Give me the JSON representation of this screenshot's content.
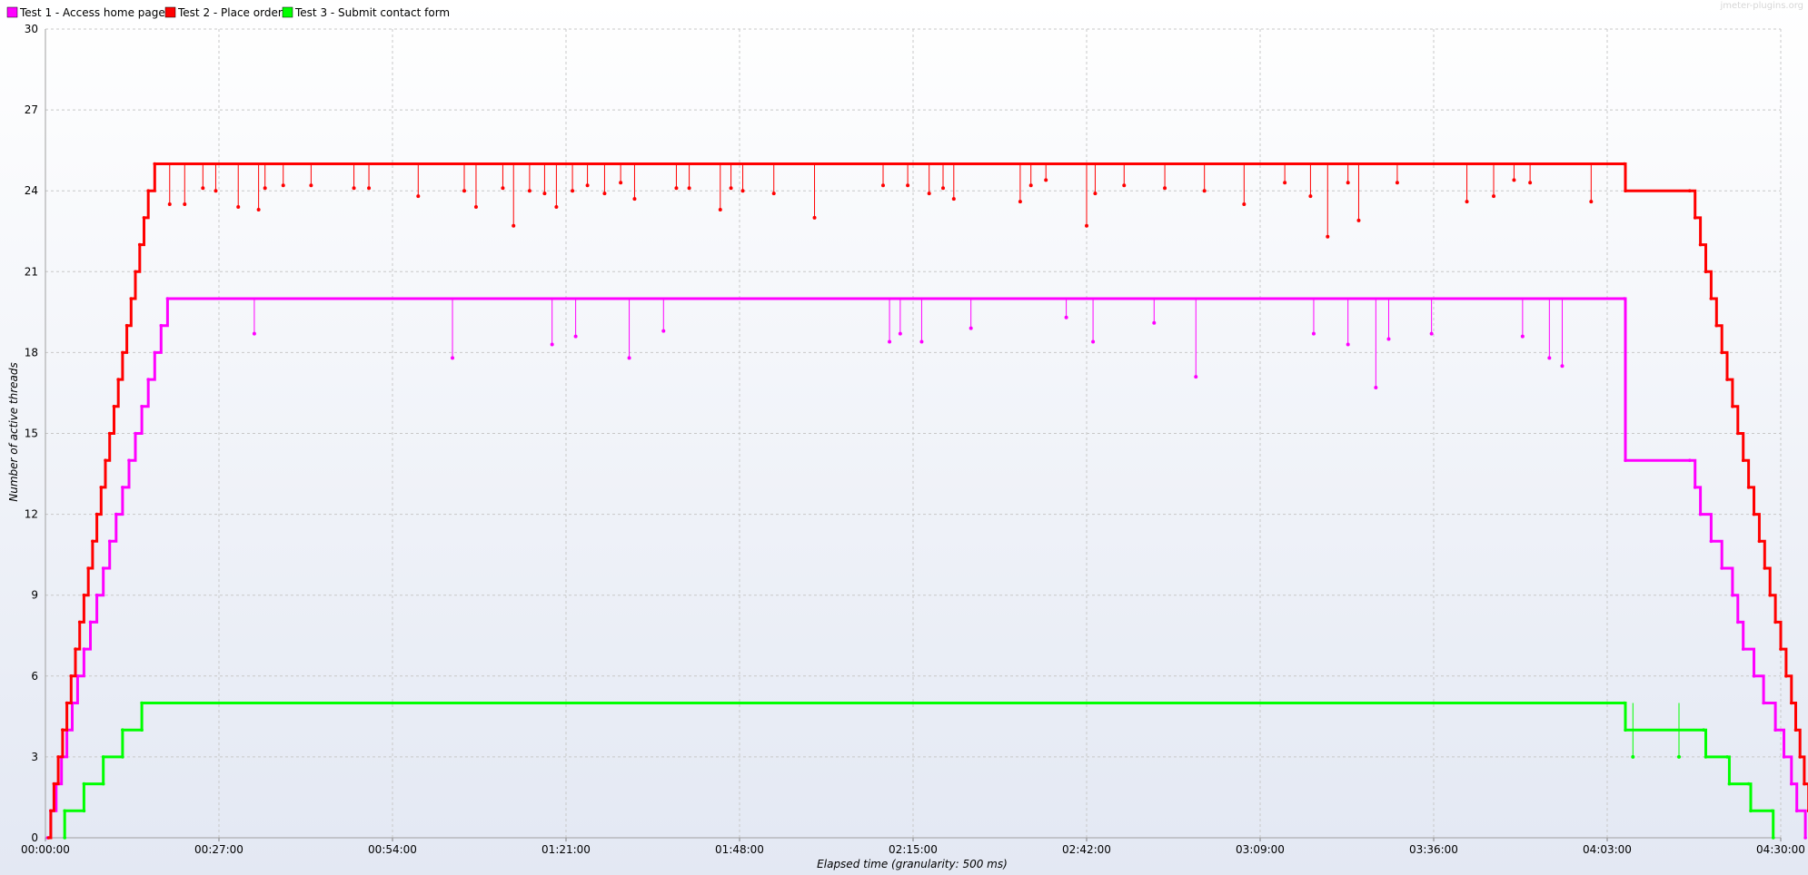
{
  "watermark": "jmeter-plugins.org",
  "colors": {
    "background_top": "#ffffff",
    "background_bottom": "#e3e8f3",
    "grid": "#c8c8c8",
    "axis": "#808080"
  },
  "chart_data": {
    "type": "line",
    "title": "",
    "xlabel": "Elapsed time (granularity: 500 ms)",
    "ylabel": "Number of active threads",
    "x_unit": "seconds",
    "xlim": [
      0,
      16200
    ],
    "ylim": [
      0,
      30
    ],
    "y_ticks": [
      0,
      3,
      6,
      9,
      12,
      15,
      18,
      21,
      24,
      27,
      30
    ],
    "x_ticks": [
      {
        "value": 0,
        "label": "00:00:00"
      },
      {
        "value": 1620,
        "label": "00:27:00"
      },
      {
        "value": 3240,
        "label": "00:54:00"
      },
      {
        "value": 4860,
        "label": "01:21:00"
      },
      {
        "value": 6480,
        "label": "01:48:00"
      },
      {
        "value": 8100,
        "label": "02:15:00"
      },
      {
        "value": 9720,
        "label": "02:42:00"
      },
      {
        "value": 11340,
        "label": "03:09:00"
      },
      {
        "value": 12960,
        "label": "03:36:00"
      },
      {
        "value": 14580,
        "label": "04:03:00"
      },
      {
        "value": 16200,
        "label": "04:30:00"
      }
    ],
    "grid": true,
    "legend_position": "top-left",
    "series": [
      {
        "name": "Test 1 - Access home page",
        "color": "#ff00ff",
        "steps": [
          [
            20,
            0
          ],
          [
            50,
            1
          ],
          [
            100,
            2
          ],
          [
            150,
            3
          ],
          [
            200,
            4
          ],
          [
            250,
            5
          ],
          [
            300,
            6
          ],
          [
            360,
            7
          ],
          [
            420,
            8
          ],
          [
            480,
            9
          ],
          [
            540,
            10
          ],
          [
            600,
            11
          ],
          [
            660,
            12
          ],
          [
            720,
            13
          ],
          [
            780,
            14
          ],
          [
            840,
            15
          ],
          [
            900,
            16
          ],
          [
            960,
            17
          ],
          [
            1020,
            18
          ],
          [
            1080,
            19
          ],
          [
            1140,
            20
          ],
          [
            14740,
            20
          ],
          [
            14750,
            14
          ],
          [
            15350,
            14
          ],
          [
            15400,
            13
          ],
          [
            15450,
            12
          ],
          [
            15550,
            11
          ],
          [
            15650,
            10
          ],
          [
            15750,
            9
          ],
          [
            15800,
            8
          ],
          [
            15850,
            7
          ],
          [
            15950,
            6
          ],
          [
            16040,
            5
          ],
          [
            16150,
            4
          ],
          [
            16230,
            3
          ],
          [
            16300,
            2
          ],
          [
            16350,
            1
          ],
          [
            16430,
            0
          ]
        ],
        "dips": [
          [
            1950,
            18.7
          ],
          [
            3800,
            17.8
          ],
          [
            4730,
            18.3
          ],
          [
            4950,
            18.6
          ],
          [
            5450,
            17.8
          ],
          [
            5770,
            18.8
          ],
          [
            7880,
            18.4
          ],
          [
            7980,
            18.7
          ],
          [
            8180,
            18.4
          ],
          [
            8640,
            18.9
          ],
          [
            9530,
            19.3
          ],
          [
            9780,
            18.4
          ],
          [
            10350,
            19.1
          ],
          [
            10740,
            17.1
          ],
          [
            11840,
            18.7
          ],
          [
            12160,
            18.3
          ],
          [
            12420,
            16.7
          ],
          [
            12540,
            18.5
          ],
          [
            12940,
            18.7
          ],
          [
            13790,
            18.6
          ],
          [
            14040,
            17.8
          ],
          [
            14160,
            17.5
          ]
        ]
      },
      {
        "name": "Test 2 - Place order",
        "color": "#ff0000",
        "steps": [
          [
            30,
            0
          ],
          [
            50,
            1
          ],
          [
            80,
            2
          ],
          [
            120,
            3
          ],
          [
            160,
            4
          ],
          [
            200,
            5
          ],
          [
            240,
            6
          ],
          [
            280,
            7
          ],
          [
            320,
            8
          ],
          [
            360,
            9
          ],
          [
            400,
            10
          ],
          [
            440,
            11
          ],
          [
            480,
            12
          ],
          [
            520,
            13
          ],
          [
            560,
            14
          ],
          [
            600,
            15
          ],
          [
            640,
            16
          ],
          [
            680,
            17
          ],
          [
            720,
            18
          ],
          [
            760,
            19
          ],
          [
            800,
            20
          ],
          [
            840,
            21
          ],
          [
            880,
            22
          ],
          [
            920,
            23
          ],
          [
            960,
            24
          ],
          [
            1020,
            25
          ],
          [
            14740,
            25
          ],
          [
            14750,
            24
          ],
          [
            15350,
            24
          ],
          [
            15400,
            23
          ],
          [
            15450,
            22
          ],
          [
            15500,
            21
          ],
          [
            15550,
            20
          ],
          [
            15600,
            19
          ],
          [
            15650,
            18
          ],
          [
            15700,
            17
          ],
          [
            15750,
            16
          ],
          [
            15800,
            15
          ],
          [
            15850,
            14
          ],
          [
            15900,
            13
          ],
          [
            15950,
            12
          ],
          [
            16000,
            11
          ],
          [
            16050,
            10
          ],
          [
            16100,
            9
          ],
          [
            16150,
            8
          ],
          [
            16200,
            7
          ],
          [
            16250,
            6
          ],
          [
            16300,
            5
          ],
          [
            16340,
            4
          ],
          [
            16380,
            3
          ],
          [
            16420,
            2
          ],
          [
            16460,
            1
          ],
          [
            16510,
            0
          ]
        ],
        "dips": [
          [
            1160,
            23.5
          ],
          [
            1300,
            23.5
          ],
          [
            1470,
            24.1
          ],
          [
            1590,
            24.0
          ],
          [
            1800,
            23.4
          ],
          [
            1990,
            23.3
          ],
          [
            2050,
            24.1
          ],
          [
            2220,
            24.2
          ],
          [
            2480,
            24.2
          ],
          [
            2880,
            24.1
          ],
          [
            3020,
            24.1
          ],
          [
            3480,
            23.8
          ],
          [
            3910,
            24.0
          ],
          [
            4020,
            23.4
          ],
          [
            4270,
            24.1
          ],
          [
            4370,
            22.7
          ],
          [
            4520,
            24.0
          ],
          [
            4660,
            23.9
          ],
          [
            4770,
            23.4
          ],
          [
            4920,
            24.0
          ],
          [
            5060,
            24.2
          ],
          [
            5220,
            23.9
          ],
          [
            5370,
            24.3
          ],
          [
            5500,
            23.7
          ],
          [
            5890,
            24.1
          ],
          [
            6010,
            24.1
          ],
          [
            6300,
            23.3
          ],
          [
            6400,
            24.1
          ],
          [
            6510,
            24.0
          ],
          [
            6800,
            23.9
          ],
          [
            7180,
            23.0
          ],
          [
            7820,
            24.2
          ],
          [
            8050,
            24.2
          ],
          [
            8250,
            23.9
          ],
          [
            8380,
            24.1
          ],
          [
            8480,
            23.7
          ],
          [
            9100,
            23.6
          ],
          [
            9200,
            24.2
          ],
          [
            9340,
            24.4
          ],
          [
            9720,
            22.7
          ],
          [
            9800,
            23.9
          ],
          [
            10070,
            24.2
          ],
          [
            10450,
            24.1
          ],
          [
            10820,
            24.0
          ],
          [
            11190,
            23.5
          ],
          [
            11570,
            24.3
          ],
          [
            11810,
            23.8
          ],
          [
            11970,
            22.3
          ],
          [
            12160,
            24.3
          ],
          [
            12260,
            22.9
          ],
          [
            12620,
            24.3
          ],
          [
            13270,
            23.6
          ],
          [
            13520,
            23.8
          ],
          [
            13710,
            24.4
          ],
          [
            13860,
            24.3
          ],
          [
            14430,
            23.6
          ]
        ]
      },
      {
        "name": "Test 3 - Submit contact form",
        "color": "#00ff00",
        "steps": [
          [
            180,
            0
          ],
          [
            180,
            1
          ],
          [
            360,
            1
          ],
          [
            360,
            2
          ],
          [
            540,
            2
          ],
          [
            540,
            3
          ],
          [
            720,
            3
          ],
          [
            720,
            4
          ],
          [
            900,
            4
          ],
          [
            900,
            5
          ],
          [
            14740,
            5
          ],
          [
            14750,
            4
          ],
          [
            15480,
            4
          ],
          [
            15500,
            3
          ],
          [
            15700,
            3
          ],
          [
            15720,
            2
          ],
          [
            15900,
            2
          ],
          [
            15920,
            1
          ],
          [
            16120,
            1
          ],
          [
            16130,
            0
          ]
        ],
        "dips": [
          [
            14820,
            3.0
          ],
          [
            15250,
            3.0
          ]
        ]
      }
    ]
  }
}
